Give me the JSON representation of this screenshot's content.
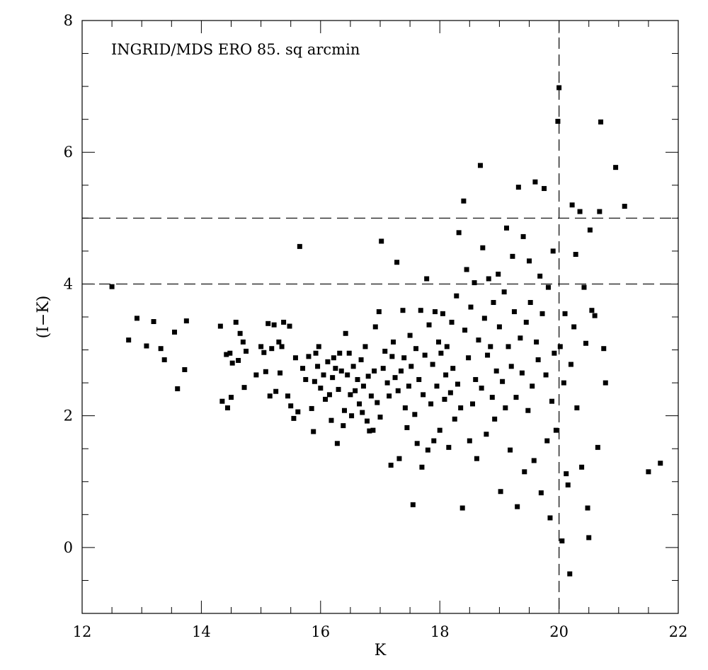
{
  "chart_data": {
    "type": "scatter",
    "title": "",
    "annotation": "INGRID/MDS ERO 85. sq arcmin",
    "xlabel": "K",
    "ylabel": "(I−K)",
    "xlim": [
      12,
      22
    ],
    "ylim": [
      -1,
      8
    ],
    "x_ticks": [
      "12",
      "14",
      "16",
      "18",
      "20",
      "22"
    ],
    "y_ticks": [
      "0",
      "2",
      "4",
      "6",
      "8"
    ],
    "grid": false,
    "reference_lines": [
      {
        "orientation": "horizontal",
        "y": 4,
        "style": "dashed"
      },
      {
        "orientation": "horizontal",
        "y": 5,
        "style": "dashed"
      },
      {
        "orientation": "vertical",
        "x": 20,
        "style": "dashed"
      }
    ],
    "marker": "square",
    "marker_color": "#000000",
    "series": [
      {
        "points": [
          [
            12.5,
            3.96
          ],
          [
            12.78,
            3.15
          ],
          [
            12.92,
            3.48
          ],
          [
            13.08,
            3.06
          ],
          [
            13.2,
            3.43
          ],
          [
            13.32,
            3.02
          ],
          [
            13.38,
            2.85
          ],
          [
            13.55,
            3.27
          ],
          [
            13.6,
            2.41
          ],
          [
            13.72,
            2.7
          ],
          [
            13.75,
            3.44
          ],
          [
            14.32,
            3.36
          ],
          [
            14.35,
            2.22
          ],
          [
            14.42,
            2.93
          ],
          [
            14.44,
            2.12
          ],
          [
            14.48,
            2.95
          ],
          [
            14.5,
            2.28
          ],
          [
            14.52,
            2.8
          ],
          [
            14.58,
            3.42
          ],
          [
            14.62,
            2.84
          ],
          [
            14.65,
            3.25
          ],
          [
            14.7,
            3.12
          ],
          [
            14.72,
            2.43
          ],
          [
            14.75,
            2.98
          ],
          [
            14.92,
            2.62
          ],
          [
            15.0,
            3.05
          ],
          [
            15.05,
            2.96
          ],
          [
            15.08,
            2.67
          ],
          [
            15.12,
            3.4
          ],
          [
            15.15,
            2.3
          ],
          [
            15.18,
            3.02
          ],
          [
            15.22,
            3.38
          ],
          [
            15.25,
            2.37
          ],
          [
            15.3,
            3.12
          ],
          [
            15.32,
            2.65
          ],
          [
            15.35,
            3.05
          ],
          [
            15.38,
            3.42
          ],
          [
            15.45,
            2.3
          ],
          [
            15.48,
            3.36
          ],
          [
            15.5,
            2.15
          ],
          [
            15.55,
            1.96
          ],
          [
            15.58,
            2.88
          ],
          [
            15.62,
            2.06
          ],
          [
            15.65,
            4.57
          ],
          [
            15.7,
            2.72
          ],
          [
            15.75,
            2.55
          ],
          [
            15.8,
            2.9
          ],
          [
            15.85,
            2.11
          ],
          [
            15.88,
            1.76
          ],
          [
            15.9,
            2.52
          ],
          [
            15.92,
            2.95
          ],
          [
            15.95,
            2.75
          ],
          [
            15.97,
            3.05
          ],
          [
            16.0,
            2.42
          ],
          [
            16.05,
            2.62
          ],
          [
            16.08,
            2.25
          ],
          [
            16.12,
            2.82
          ],
          [
            16.15,
            2.32
          ],
          [
            16.18,
            1.93
          ],
          [
            16.2,
            2.58
          ],
          [
            16.22,
            2.88
          ],
          [
            16.25,
            2.72
          ],
          [
            16.28,
            1.58
          ],
          [
            16.3,
            2.4
          ],
          [
            16.32,
            2.95
          ],
          [
            16.35,
            2.68
          ],
          [
            16.38,
            1.85
          ],
          [
            16.4,
            2.08
          ],
          [
            16.42,
            3.25
          ],
          [
            16.45,
            2.62
          ],
          [
            16.48,
            2.95
          ],
          [
            16.5,
            2.32
          ],
          [
            16.52,
            2.0
          ],
          [
            16.55,
            2.75
          ],
          [
            16.58,
            2.38
          ],
          [
            16.62,
            2.55
          ],
          [
            16.65,
            2.18
          ],
          [
            16.68,
            2.85
          ],
          [
            16.7,
            2.05
          ],
          [
            16.72,
            2.45
          ],
          [
            16.75,
            3.05
          ],
          [
            16.78,
            1.92
          ],
          [
            16.8,
            2.6
          ],
          [
            16.82,
            1.77
          ],
          [
            16.85,
            2.3
          ],
          [
            16.88,
            1.78
          ],
          [
            16.9,
            2.68
          ],
          [
            16.92,
            3.35
          ],
          [
            16.95,
            2.2
          ],
          [
            16.98,
            3.58
          ],
          [
            17.0,
            1.98
          ],
          [
            17.02,
            4.65
          ],
          [
            17.05,
            2.72
          ],
          [
            17.08,
            2.98
          ],
          [
            17.12,
            2.5
          ],
          [
            17.15,
            2.3
          ],
          [
            17.18,
            1.25
          ],
          [
            17.2,
            2.9
          ],
          [
            17.22,
            3.12
          ],
          [
            17.25,
            2.58
          ],
          [
            17.28,
            4.33
          ],
          [
            17.3,
            2.38
          ],
          [
            17.32,
            1.35
          ],
          [
            17.35,
            2.68
          ],
          [
            17.38,
            3.6
          ],
          [
            17.4,
            2.88
          ],
          [
            17.42,
            2.12
          ],
          [
            17.45,
            1.82
          ],
          [
            17.48,
            2.45
          ],
          [
            17.5,
            3.22
          ],
          [
            17.52,
            2.75
          ],
          [
            17.55,
            0.65
          ],
          [
            17.58,
            2.02
          ],
          [
            17.6,
            3.02
          ],
          [
            17.62,
            1.58
          ],
          [
            17.65,
            2.55
          ],
          [
            17.68,
            3.6
          ],
          [
            17.7,
            1.22
          ],
          [
            17.72,
            2.32
          ],
          [
            17.75,
            2.92
          ],
          [
            17.78,
            4.08
          ],
          [
            17.8,
            1.48
          ],
          [
            17.82,
            3.38
          ],
          [
            17.85,
            2.18
          ],
          [
            17.88,
            2.78
          ],
          [
            17.9,
            1.62
          ],
          [
            17.92,
            3.58
          ],
          [
            17.95,
            2.45
          ],
          [
            17.98,
            3.12
          ],
          [
            18.0,
            1.78
          ],
          [
            18.02,
            2.95
          ],
          [
            18.05,
            3.55
          ],
          [
            18.08,
            2.25
          ],
          [
            18.1,
            2.62
          ],
          [
            18.12,
            3.05
          ],
          [
            18.15,
            1.52
          ],
          [
            18.18,
            2.35
          ],
          [
            18.2,
            3.42
          ],
          [
            18.22,
            2.72
          ],
          [
            18.25,
            1.95
          ],
          [
            18.28,
            3.82
          ],
          [
            18.3,
            2.48
          ],
          [
            18.32,
            4.78
          ],
          [
            18.35,
            2.12
          ],
          [
            18.38,
            0.6
          ],
          [
            18.4,
            5.26
          ],
          [
            18.42,
            3.3
          ],
          [
            18.45,
            4.22
          ],
          [
            18.48,
            2.88
          ],
          [
            18.5,
            1.62
          ],
          [
            18.52,
            3.65
          ],
          [
            18.55,
            2.18
          ],
          [
            18.58,
            4.02
          ],
          [
            18.6,
            2.55
          ],
          [
            18.62,
            1.35
          ],
          [
            18.65,
            3.15
          ],
          [
            18.68,
            5.8
          ],
          [
            18.7,
            2.42
          ],
          [
            18.72,
            4.55
          ],
          [
            18.75,
            3.48
          ],
          [
            18.78,
            1.72
          ],
          [
            18.8,
            2.92
          ],
          [
            18.82,
            4.08
          ],
          [
            18.85,
            3.05
          ],
          [
            18.88,
            2.28
          ],
          [
            18.9,
            3.72
          ],
          [
            18.92,
            1.95
          ],
          [
            18.95,
            2.68
          ],
          [
            18.98,
            4.15
          ],
          [
            19.0,
            3.35
          ],
          [
            19.02,
            0.85
          ],
          [
            19.05,
            2.52
          ],
          [
            19.08,
            3.88
          ],
          [
            19.1,
            2.12
          ],
          [
            19.12,
            4.85
          ],
          [
            19.15,
            3.05
          ],
          [
            19.18,
            1.48
          ],
          [
            19.2,
            2.75
          ],
          [
            19.22,
            4.42
          ],
          [
            19.25,
            3.58
          ],
          [
            19.28,
            2.28
          ],
          [
            19.3,
            0.62
          ],
          [
            19.32,
            5.47
          ],
          [
            19.35,
            3.18
          ],
          [
            19.38,
            2.65
          ],
          [
            19.4,
            4.72
          ],
          [
            19.42,
            1.15
          ],
          [
            19.45,
            3.42
          ],
          [
            19.48,
            2.08
          ],
          [
            19.5,
            4.35
          ],
          [
            19.52,
            3.72
          ],
          [
            19.55,
            2.45
          ],
          [
            19.58,
            1.32
          ],
          [
            19.6,
            5.55
          ],
          [
            19.62,
            3.12
          ],
          [
            19.65,
            2.85
          ],
          [
            19.68,
            4.12
          ],
          [
            19.7,
            0.83
          ],
          [
            19.72,
            3.55
          ],
          [
            19.75,
            5.45
          ],
          [
            19.78,
            2.62
          ],
          [
            19.8,
            1.62
          ],
          [
            19.82,
            3.95
          ],
          [
            19.85,
            0.45
          ],
          [
            19.88,
            2.22
          ],
          [
            19.9,
            4.5
          ],
          [
            19.92,
            2.95
          ],
          [
            19.95,
            1.78
          ],
          [
            19.98,
            6.47
          ],
          [
            20.0,
            6.98
          ],
          [
            20.02,
            3.05
          ],
          [
            20.05,
            0.1
          ],
          [
            20.08,
            2.5
          ],
          [
            20.1,
            3.55
          ],
          [
            20.12,
            1.12
          ],
          [
            20.15,
            0.95
          ],
          [
            20.18,
            -0.4
          ],
          [
            20.2,
            2.78
          ],
          [
            20.22,
            5.2
          ],
          [
            20.25,
            3.35
          ],
          [
            20.28,
            4.45
          ],
          [
            20.3,
            2.12
          ],
          [
            20.35,
            5.1
          ],
          [
            20.38,
            1.22
          ],
          [
            20.42,
            3.95
          ],
          [
            20.45,
            3.1
          ],
          [
            20.48,
            0.6
          ],
          [
            20.5,
            0.15
          ],
          [
            20.52,
            4.82
          ],
          [
            20.55,
            3.6
          ],
          [
            20.6,
            3.52
          ],
          [
            20.65,
            1.52
          ],
          [
            20.68,
            5.1
          ],
          [
            20.7,
            6.46
          ],
          [
            20.75,
            3.02
          ],
          [
            20.78,
            2.5
          ],
          [
            20.95,
            5.77
          ],
          [
            21.1,
            5.18
          ],
          [
            21.5,
            1.15
          ],
          [
            21.7,
            1.28
          ]
        ]
      }
    ]
  }
}
